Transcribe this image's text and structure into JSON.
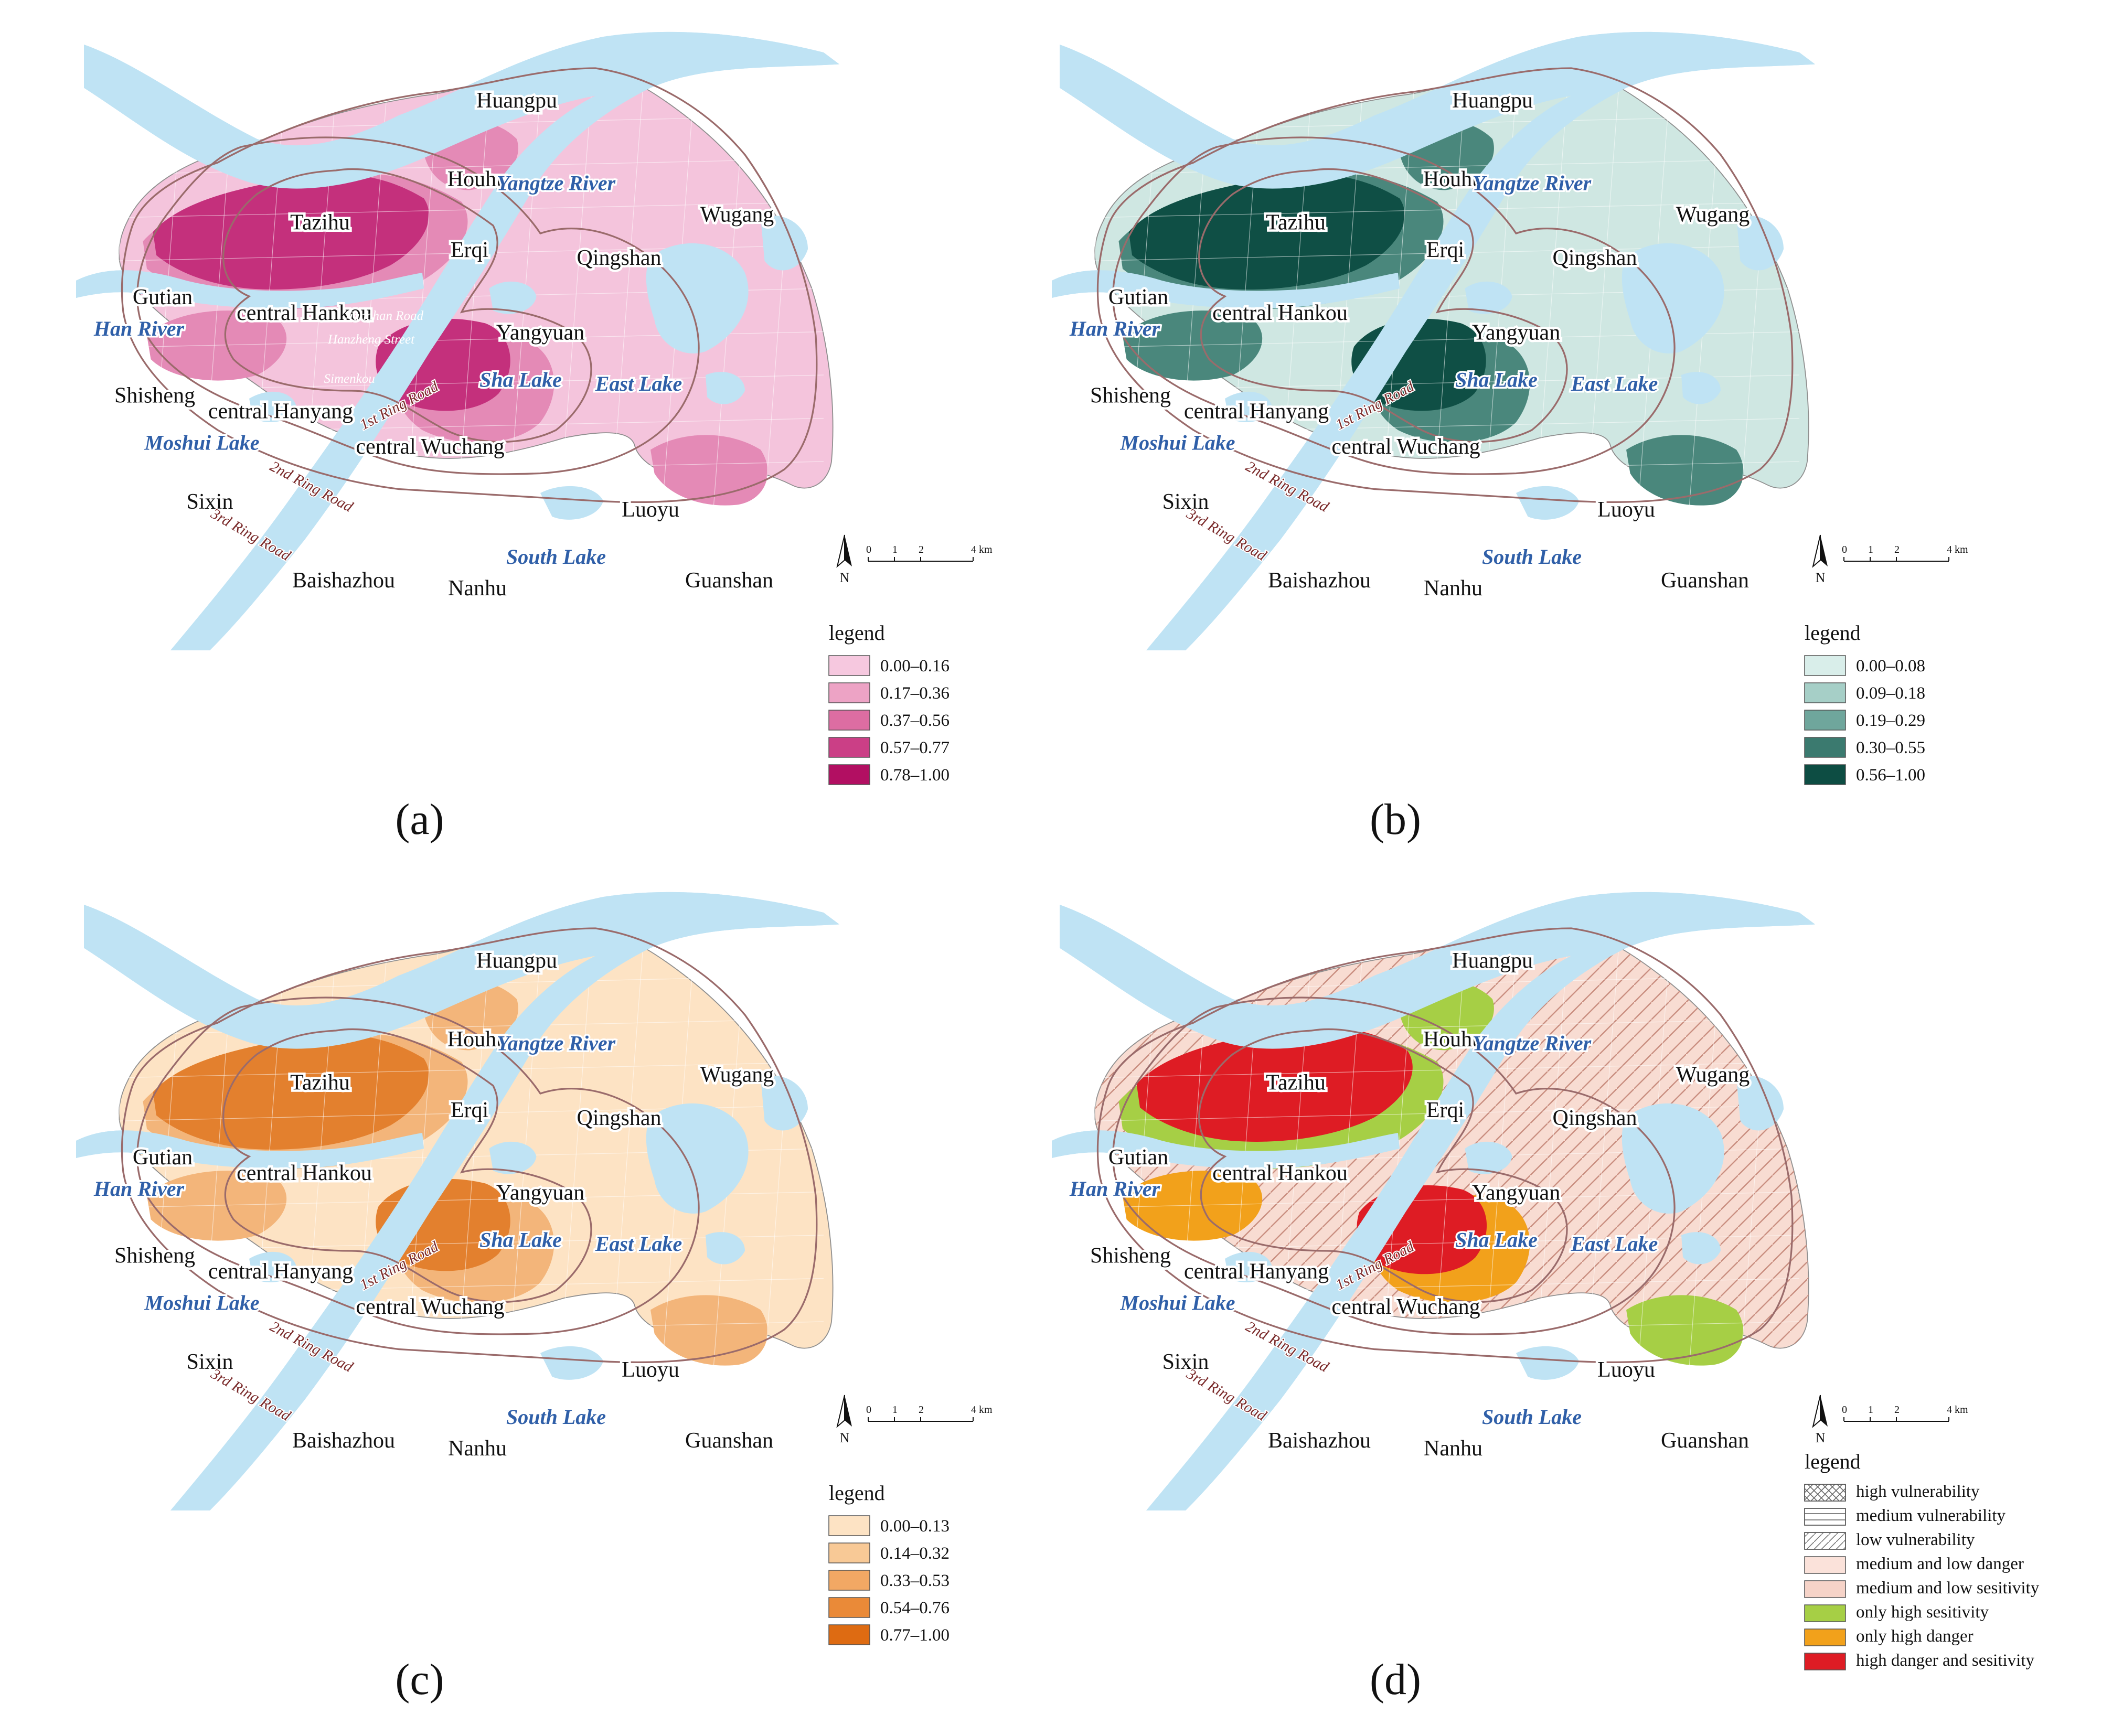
{
  "panels": [
    {
      "id": "a",
      "caption": "(a)",
      "legend": {
        "title": "legend",
        "items": [
          {
            "label": "0.00–0.16",
            "color": "#f6c8df"
          },
          {
            "label": "0.17–0.36",
            "color": "#eda3c5"
          },
          {
            "label": "0.37–0.56",
            "color": "#dd6da2"
          },
          {
            "label": "0.57–0.77",
            "color": "#cb3f86"
          },
          {
            "label": "0.78–1.00",
            "color": "#b20f62"
          }
        ]
      },
      "core_color": "#c4307c",
      "mid_color": "#e48ab6",
      "outer_color": "#f4c4dc",
      "streets": [
        "Jianghan Road",
        "Hanzheng Street",
        "Simenkou"
      ]
    },
    {
      "id": "b",
      "caption": "(b)",
      "legend": {
        "title": "legend",
        "items": [
          {
            "label": "0.00–0.08",
            "color": "#d9eeea"
          },
          {
            "label": "0.09–0.18",
            "color": "#a6cfc7"
          },
          {
            "label": "0.19–0.29",
            "color": "#6fa69c"
          },
          {
            "label": "0.30–0.55",
            "color": "#3b7a6f"
          },
          {
            "label": "0.56–1.00",
            "color": "#0d4d43"
          }
        ]
      },
      "core_color": "#0f4f45",
      "mid_color": "#4a877c",
      "outer_color": "#cfe7e2",
      "streets": []
    },
    {
      "id": "c",
      "caption": "(c)",
      "legend": {
        "title": "legend",
        "items": [
          {
            "label": "0.00–0.13",
            "color": "#fde3c4"
          },
          {
            "label": "0.14–0.32",
            "color": "#f8c996"
          },
          {
            "label": "0.33–0.53",
            "color": "#f2a864"
          },
          {
            "label": "0.54–0.76",
            "color": "#ea8a38"
          },
          {
            "label": "0.77–1.00",
            "color": "#de6b12"
          }
        ]
      },
      "core_color": "#e3802e",
      "mid_color": "#f3b57a",
      "outer_color": "#fde3c4",
      "streets": []
    },
    {
      "id": "d",
      "caption": "(d)",
      "legend": {
        "title": "legend",
        "items": [
          {
            "label": "high vulnerability",
            "color": "#ffffff",
            "pattern": "cross"
          },
          {
            "label": "medium vulnerability",
            "color": "#ffffff",
            "pattern": "horizontal"
          },
          {
            "label": "low vulnerability",
            "color": "#ffffff",
            "pattern": "diagonal"
          },
          {
            "label": "medium and low danger",
            "color": "#fbe2da"
          },
          {
            "label": "medium and low sesitivity",
            "color": "#f6d3c8"
          },
          {
            "label": "only high sesitivity",
            "color": "#a6cf45"
          },
          {
            "label": "only high danger",
            "color": "#f2a11b"
          },
          {
            "label": "high danger and sesitivity",
            "color": "#de1c24"
          }
        ]
      },
      "core_color": "#de1c24",
      "mid_color": "#f2a11b",
      "outer_color": "#f8dcd2",
      "green_color": "#a6cf45",
      "streets": []
    }
  ],
  "districts": [
    "Huangpu",
    "Houhu",
    "Tazihu",
    "Erqi",
    "Qingshan",
    "Wugang",
    "Gutian",
    "central Hankou",
    "Yangyuan",
    "Shisheng",
    "central Hanyang",
    "central Wuchang",
    "Sixin",
    "Luoyu",
    "Baishazhou",
    "Nanhu",
    "Guanshan"
  ],
  "water_bodies": [
    "Yangtze River",
    "Han River",
    "Sha Lake",
    "East Lake",
    "Moshui Lake",
    "South Lake"
  ],
  "roads": [
    "1st Ring Road",
    "2nd Ring Road",
    "3rd Ring Road"
  ],
  "scale_bar": {
    "ticks": [
      "0",
      "1",
      "2",
      "4 km"
    ],
    "north_label": "N"
  },
  "colors": {
    "water": "#bfe3f4",
    "ring_road": "#9a6b6b",
    "boundary": "#8f8f8f"
  }
}
